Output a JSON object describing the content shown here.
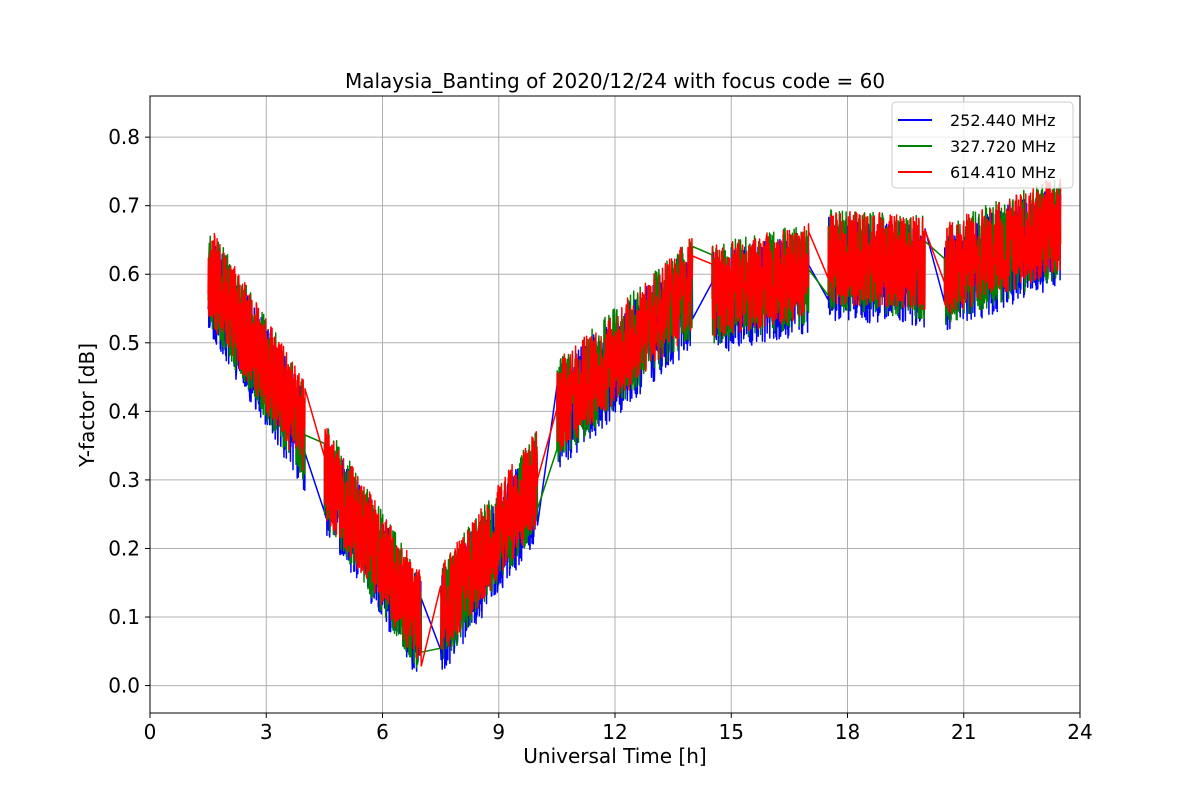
{
  "chart_data": {
    "type": "line",
    "title": "Malaysia_Banting of 2020/12/24 with focus code = 60",
    "xlabel": "Universal Time [h]",
    "ylabel": "Y-factor [dB]",
    "xlim": [
      0,
      24
    ],
    "ylim": [
      -0.04,
      0.86
    ],
    "xticks": [
      0,
      3,
      6,
      9,
      12,
      15,
      18,
      21,
      24
    ],
    "xtick_labels": [
      "0",
      "3",
      "6",
      "9",
      "12",
      "15",
      "18",
      "21",
      "24"
    ],
    "yticks": [
      0.0,
      0.1,
      0.2,
      0.3,
      0.4,
      0.5,
      0.6,
      0.7,
      0.8
    ],
    "ytick_labels": [
      "0.0",
      "0.1",
      "0.2",
      "0.3",
      "0.4",
      "0.5",
      "0.6",
      "0.7",
      "0.8"
    ],
    "grid": true,
    "legend_position": "top-right",
    "segments": [
      {
        "x_start": 1.5,
        "x_end": 4.0,
        "y_start": 0.6,
        "y_end": 0.37
      },
      {
        "x_start": 4.5,
        "x_end": 7.0,
        "y_start": 0.31,
        "y_end": 0.09
      },
      {
        "x_start": 7.5,
        "x_end": 10.0,
        "y_start": 0.1,
        "y_end": 0.3
      },
      {
        "x_start": 10.5,
        "x_end": 14.0,
        "y_start": 0.4,
        "y_end": 0.58
      },
      {
        "x_start": 14.5,
        "x_end": 17.0,
        "y_start": 0.57,
        "y_end": 0.6
      },
      {
        "x_start": 17.5,
        "x_end": 20.0,
        "y_start": 0.62,
        "y_end": 0.61
      },
      {
        "x_start": 20.5,
        "x_end": 23.5,
        "y_start": 0.6,
        "y_end": 0.67
      }
    ],
    "series": [
      {
        "name": "252.440 MHz",
        "color": "#0000ff",
        "offset": -0.012,
        "noise": 0.075,
        "seed": 11
      },
      {
        "name": "327.720 MHz",
        "color": "#008000",
        "offset": 0.0,
        "noise": 0.075,
        "seed": 23
      },
      {
        "name": "614.410 MHz",
        "color": "#ff0000",
        "offset": 0.005,
        "noise": 0.07,
        "seed": 37
      }
    ]
  }
}
